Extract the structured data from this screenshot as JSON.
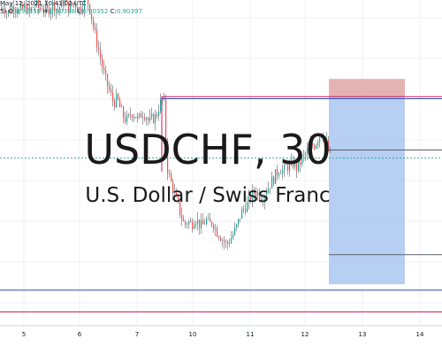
{
  "header": {
    "date_text": "May 12, 2021 10:41:02 UTC",
    "ohlc_prefix": "5)",
    "o_label": "O:",
    "o_value": "0.90358",
    "h_label": "H:",
    "h_value": "0.90398",
    "l_label": "L:",
    "l_value": "0.90352",
    "c_label": "C:",
    "c_value": "0.90397"
  },
  "watermark": {
    "symbol": "USDCHF, 30",
    "description": "U.S. Dollar / Swiss Franc"
  },
  "colors": {
    "up": "#26a69a",
    "down": "#ef5350",
    "wick": "#5d606b",
    "grid": "#eef0f3",
    "pink_line": "#c2185b",
    "navy_line": "#3949ab",
    "stop_zone": "#e0a4a4",
    "target_zone": "#a9c7f0",
    "bid_line": "#26a69a"
  },
  "chart_data": {
    "type": "candlestick",
    "x_ticks": [
      "5",
      "6",
      "7",
      "10",
      "11",
      "12",
      "13",
      "14"
    ],
    "ylim": [
      0.895,
      0.9115
    ],
    "price_trajectory": [
      [
        0,
        0.911
      ],
      [
        4,
        0.9112
      ],
      [
        8,
        0.9108
      ],
      [
        12,
        0.9111
      ],
      [
        16,
        0.9113
      ],
      [
        20,
        0.9109
      ],
      [
        24,
        0.911
      ],
      [
        28,
        0.9112
      ],
      [
        32,
        0.9108
      ],
      [
        36,
        0.9111
      ],
      [
        40,
        0.9114
      ],
      [
        44,
        0.911
      ],
      [
        48,
        0.9112
      ],
      [
        52,
        0.9109
      ],
      [
        56,
        0.9111
      ],
      [
        60,
        0.9113
      ],
      [
        64,
        0.911
      ],
      [
        68,
        0.9112
      ],
      [
        72,
        0.9115
      ],
      [
        76,
        0.9111
      ],
      [
        80,
        0.9112
      ],
      [
        84,
        0.9114
      ],
      [
        88,
        0.911
      ],
      [
        92,
        0.9112
      ],
      [
        96,
        0.9116
      ],
      [
        100,
        0.9113
      ],
      [
        104,
        0.9104
      ],
      [
        108,
        0.9095
      ],
      [
        112,
        0.9088
      ],
      [
        116,
        0.9079
      ],
      [
        120,
        0.9073
      ],
      [
        124,
        0.9068
      ],
      [
        128,
        0.9063
      ],
      [
        132,
        0.9065
      ],
      [
        136,
        0.9059
      ],
      [
        140,
        0.9055
      ],
      [
        144,
        0.9054
      ],
      [
        148,
        0.9058
      ],
      [
        152,
        0.9057
      ],
      [
        156,
        0.9054
      ],
      [
        160,
        0.9058
      ],
      [
        164,
        0.9057
      ],
      [
        168,
        0.9053
      ],
      [
        172,
        0.9055
      ],
      [
        176,
        0.9056
      ],
      [
        180,
        0.9062
      ],
      [
        184,
        0.9066
      ],
      [
        186,
        0.9058
      ],
      [
        188,
        0.9031
      ],
      [
        192,
        0.9024
      ],
      [
        196,
        0.9018
      ],
      [
        200,
        0.9012
      ],
      [
        204,
        0.9006
      ],
      [
        208,
        0.9001
      ],
      [
        212,
        0.9003
      ],
      [
        216,
        0.9001
      ],
      [
        220,
        0.9005
      ],
      [
        224,
        0.9002
      ],
      [
        228,
        0.9
      ],
      [
        232,
        0.9004
      ],
      [
        236,
        0.9001
      ],
      [
        240,
        0.9003
      ],
      [
        244,
        0.8998
      ],
      [
        248,
        0.8996
      ],
      [
        252,
        0.8993
      ],
      [
        256,
        0.8991
      ],
      [
        260,
        0.8994
      ],
      [
        264,
        0.8997
      ],
      [
        268,
        0.9001
      ],
      [
        272,
        0.9007
      ],
      [
        276,
        0.901
      ],
      [
        280,
        0.9012
      ],
      [
        284,
        0.9016
      ],
      [
        288,
        0.9018
      ],
      [
        292,
        0.9017
      ],
      [
        296,
        0.9015
      ],
      [
        300,
        0.9018
      ],
      [
        304,
        0.9021
      ],
      [
        308,
        0.9024
      ],
      [
        312,
        0.9027
      ],
      [
        316,
        0.903
      ],
      [
        320,
        0.9028
      ],
      [
        324,
        0.9031
      ],
      [
        328,
        0.903
      ],
      [
        332,
        0.9033
      ],
      [
        336,
        0.9029
      ],
      [
        340,
        0.9034
      ],
      [
        344,
        0.9036
      ],
      [
        348,
        0.9039
      ],
      [
        352,
        0.9041
      ],
      [
        356,
        0.9042
      ],
      [
        360,
        0.9046
      ],
      [
        364,
        0.9048
      ],
      [
        368,
        0.9043
      ],
      [
        372,
        0.9037
      ],
      [
        374,
        0.9035
      ]
    ],
    "horizontal_lines": [
      {
        "name": "pink-upper-line",
        "price": 0.9066,
        "x_start": 183,
        "x_end": 500,
        "color": "pink"
      },
      {
        "name": "navy-upper-line",
        "price": 0.9065,
        "x_start": 183,
        "x_end": 500,
        "color": "navy"
      },
      {
        "name": "entry-line",
        "price": 0.9039,
        "x_start": 372,
        "x_end": 500,
        "color": "wick"
      },
      {
        "name": "target-level-line",
        "price": 0.8986,
        "x_start": 372,
        "x_end": 500,
        "color": "wick"
      },
      {
        "name": "navy-lower-line",
        "price": 0.8968,
        "x_start": 0,
        "x_end": 500,
        "color": "navy"
      },
      {
        "name": "pink-lower-line",
        "price": 0.8957,
        "x_start": 0,
        "x_end": 500,
        "color": "pink"
      },
      {
        "name": "current-bid-line",
        "price": 0.9035,
        "x_start": 0,
        "x_end": 500,
        "color": "bid",
        "dashed": true
      }
    ],
    "short_position": {
      "x_start": 372,
      "x_end": 458,
      "stop_price_top": 0.9075,
      "entry_price": 0.9066,
      "target_price": 0.8971
    }
  }
}
